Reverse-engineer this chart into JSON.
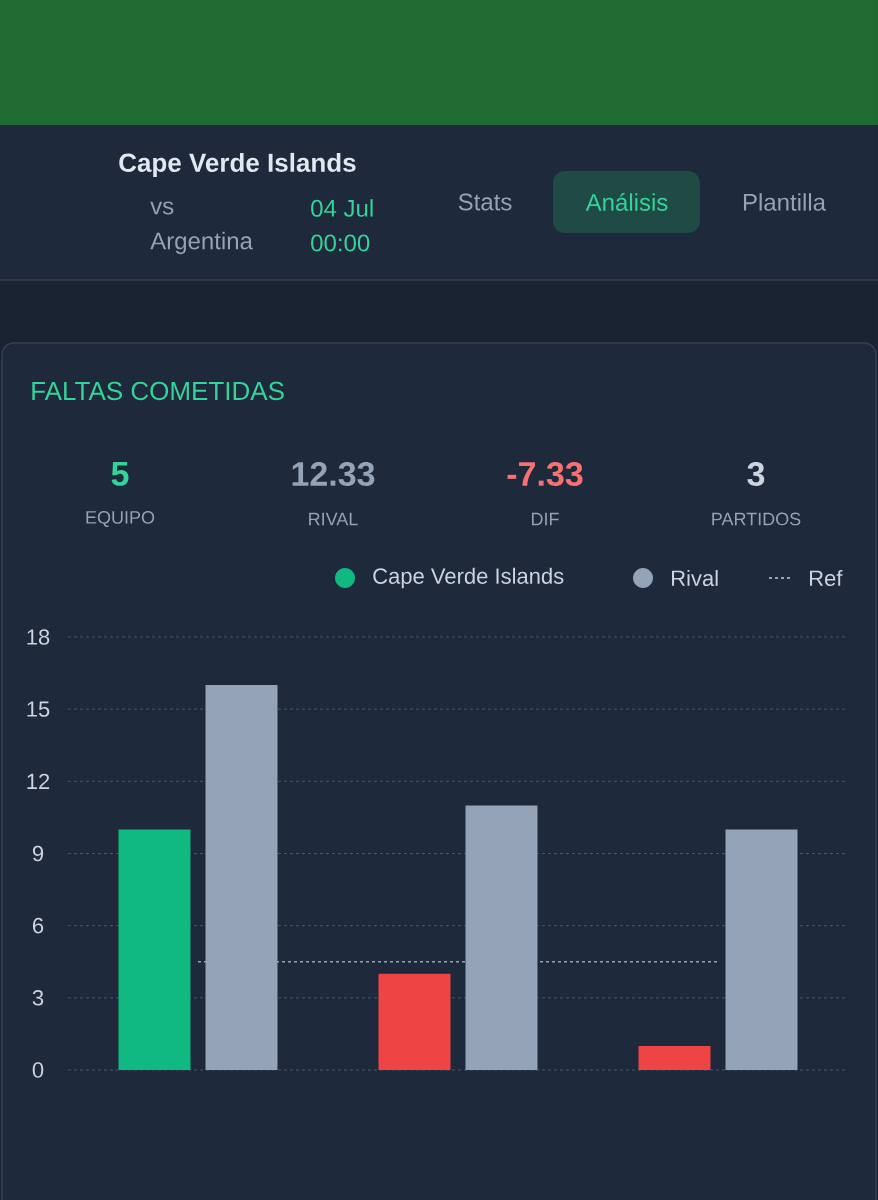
{
  "chart_data": {
    "type": "bar",
    "title": "FALTAS COMETIDAS",
    "categories": [
      null,
      null,
      null
    ],
    "series": [
      {
        "name": "Cape Verde Islands",
        "colors": [
          "#10b981",
          "#ef4444",
          "#ef4444"
        ],
        "values": [
          10,
          4,
          1
        ]
      },
      {
        "name": "Rival",
        "color": "#94a3b8",
        "values": [
          16,
          11,
          10
        ]
      }
    ],
    "ylim": [
      0,
      18
    ],
    "yticks": [
      0,
      3,
      6,
      9,
      12,
      15,
      18
    ],
    "grid": "y",
    "legend": "top right",
    "tick_labels": "y",
    "ref_lines": [
      {
        "axis": "y",
        "value": 4.5,
        "label": "Ref",
        "color": "#94a3b8",
        "line_style": "dashed"
      }
    ],
    "annotations": [
      "5",
      "EQUIPO",
      "12.33",
      "RIVAL",
      "-7.33",
      "DIF",
      "3",
      "PARTIDOS",
      "Cape Verde Islands",
      "vs",
      "Argentina",
      "04 Jul",
      "00:00",
      "Stats",
      "Análisis",
      "Plantilla"
    ]
  }
}
